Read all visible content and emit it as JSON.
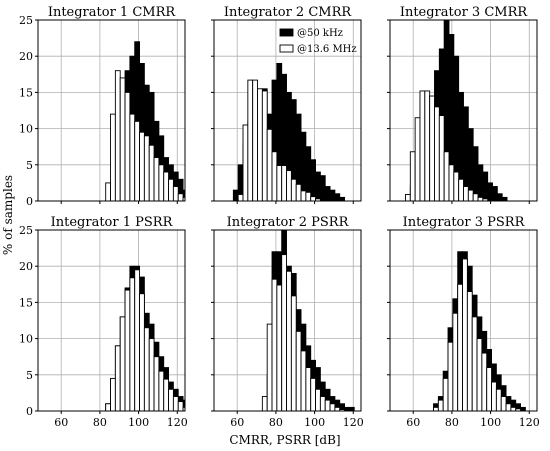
{
  "figure": {
    "xlabel": "CMRR, PSRR [dB]",
    "ylabel": "% of samples"
  },
  "legend": {
    "entries": [
      {
        "label": "@50 kHz",
        "color": "#000000"
      },
      {
        "label": "@13.6 MHz",
        "color": "#ffffff"
      }
    ],
    "placement": "upper-right of Integrator 2 CMRR panel"
  },
  "chart_data": [
    {
      "type": "histogram",
      "title": "Integrator 1 CMRR",
      "xlim": [
        48,
        124
      ],
      "ylim": [
        0,
        25
      ],
      "xticks": [
        60,
        80,
        100,
        120
      ],
      "yticks": [
        0,
        5,
        10,
        15,
        20,
        25
      ],
      "grid": true,
      "series": [
        {
          "name": "@50 kHz",
          "color": "#000000",
          "bin_start": 78,
          "bin_width": 2.5,
          "values": [
            0,
            0,
            0,
            1.5,
            3.3,
            12,
            18,
            20,
            22,
            19,
            16,
            15,
            11,
            9,
            6,
            5,
            4,
            3,
            1.5,
            1.5,
            1.5
          ]
        },
        {
          "name": "@13.6 MHz",
          "color": "#ffffff",
          "bin_start": 78,
          "bin_width": 2.5,
          "values": [
            0,
            0,
            2.5,
            12,
            18,
            17,
            15,
            12,
            11,
            9.5,
            9,
            7.7,
            6,
            5,
            4,
            3,
            2,
            1,
            0.5,
            0.3,
            0
          ]
        }
      ]
    },
    {
      "type": "histogram",
      "title": "Integrator 2 CMRR",
      "xlim": [
        48,
        124
      ],
      "ylim": [
        0,
        25
      ],
      "xticks": [
        60,
        80,
        100,
        120
      ],
      "yticks": [
        0,
        5,
        10,
        15,
        20,
        25
      ],
      "grid": true,
      "series": [
        {
          "name": "@50 kHz",
          "color": "#000000",
          "bin_start": 48,
          "bin_width": 2.5,
          "values": [
            0,
            0,
            0,
            0,
            1.5,
            5,
            8,
            11,
            13,
            15,
            15.5,
            12,
            16.7,
            19,
            17.5,
            15,
            14,
            12,
            9.5,
            7.5,
            5.7,
            4,
            3.5,
            2,
            1.5,
            1,
            0.5
          ]
        },
        {
          "name": "@13.6 MHz",
          "color": "#ffffff",
          "bin_start": 48,
          "bin_width": 2.5,
          "values": [
            0,
            0,
            0,
            0,
            0,
            0.9,
            10.5,
            16.7,
            16.7,
            15.5,
            15.2,
            9.9,
            6.8,
            4.9,
            4.9,
            4.2,
            3,
            2.3,
            1.4,
            1.2,
            0.6,
            0.3,
            0,
            0,
            0,
            0,
            0
          ]
        }
      ]
    },
    {
      "type": "histogram",
      "title": "Integrator 3 CMRR",
      "xlim": [
        48,
        124
      ],
      "ylim": [
        0,
        25
      ],
      "xticks": [
        60,
        80,
        100,
        120
      ],
      "yticks": [
        0,
        5,
        10,
        15,
        20,
        25
      ],
      "grid": true,
      "series": [
        {
          "name": "@50 kHz",
          "color": "#000000",
          "bin_start": 56,
          "bin_width": 2.5,
          "values": [
            0,
            2,
            4,
            7,
            10,
            13,
            18,
            21,
            25,
            23,
            20,
            15,
            13,
            10,
            7.5,
            5,
            4,
            2.5,
            2,
            1,
            0.5
          ]
        },
        {
          "name": "@13.6 MHz",
          "color": "#ffffff",
          "bin_start": 56,
          "bin_width": 2.5,
          "values": [
            0.9,
            6.8,
            11.5,
            15.2,
            15.2,
            14.5,
            13,
            11.8,
            6.8,
            5,
            4,
            3,
            2,
            1.5,
            1,
            0.5,
            0.3,
            0,
            0,
            0,
            0
          ]
        }
      ]
    },
    {
      "type": "histogram",
      "title": "Integrator 1 PSRR",
      "xlim": [
        48,
        124
      ],
      "ylim": [
        0,
        25
      ],
      "xticks": [
        60,
        80,
        100,
        120
      ],
      "yticks": [
        0,
        5,
        10,
        15,
        20,
        25
      ],
      "grid": true,
      "series": [
        {
          "name": "@50 kHz",
          "color": "#000000",
          "bin_start": 80.5,
          "bin_width": 2.5,
          "values": [
            0,
            1,
            4.5,
            9,
            13,
            17,
            20,
            20,
            18.5,
            13.5,
            12,
            9.5,
            7.5,
            6,
            4,
            3,
            2,
            1.5
          ]
        },
        {
          "name": "@13.6 MHz",
          "color": "#ffffff",
          "bin_start": 80.5,
          "bin_width": 2.5,
          "values": [
            0,
            1,
            4.5,
            9,
            13,
            16.7,
            18.4,
            19.5,
            16.2,
            11.5,
            10,
            7.5,
            5.5,
            4.4,
            3,
            2,
            1.3,
            0.5
          ]
        }
      ]
    },
    {
      "type": "histogram",
      "title": "Integrator 2 PSRR",
      "xlim": [
        48,
        124
      ],
      "ylim": [
        0,
        25
      ],
      "xticks": [
        60,
        80,
        100,
        120
      ],
      "yticks": [
        0,
        5,
        10,
        15,
        20,
        25
      ],
      "grid": true,
      "series": [
        {
          "name": "@50 kHz",
          "color": "#000000",
          "bin_start": 73,
          "bin_width": 2.5,
          "values": [
            0,
            5,
            22,
            22,
            25,
            20,
            19,
            14,
            12,
            9,
            7,
            6,
            4,
            3,
            2,
            1.5,
            1,
            0.5,
            0.5
          ]
        },
        {
          "name": "@13.6 MHz",
          "color": "#ffffff",
          "bin_start": 73,
          "bin_width": 2.5,
          "values": [
            2,
            12,
            18.2,
            17.4,
            21.6,
            19.3,
            15.9,
            11,
            8.3,
            6,
            4.5,
            3,
            2,
            1.5,
            1,
            0.5,
            0.2,
            0,
            0
          ]
        }
      ]
    },
    {
      "type": "histogram",
      "title": "Integrator 3 PSRR",
      "xlim": [
        48,
        124
      ],
      "ylim": [
        0,
        25
      ],
      "xticks": [
        60,
        80,
        100,
        120
      ],
      "yticks": [
        0,
        5,
        10,
        15,
        20,
        25
      ],
      "grid": true,
      "series": [
        {
          "name": "@50 kHz",
          "color": "#000000",
          "bin_start": 70.5,
          "bin_width": 2.5,
          "values": [
            1,
            2,
            5.5,
            11.5,
            15.5,
            22,
            22,
            20,
            16,
            13,
            11,
            8.5,
            6.5,
            5,
            3.5,
            2,
            1.5,
            1,
            0.5
          ]
        },
        {
          "name": "@13.6 MHz",
          "color": "#ffffff",
          "bin_start": 70.5,
          "bin_width": 2.5,
          "values": [
            0.5,
            1.5,
            4.5,
            9.5,
            13.5,
            17.5,
            21,
            16.5,
            13,
            10,
            8,
            6,
            4,
            3,
            2,
            1,
            0.5,
            0.3,
            0
          ]
        }
      ]
    }
  ]
}
